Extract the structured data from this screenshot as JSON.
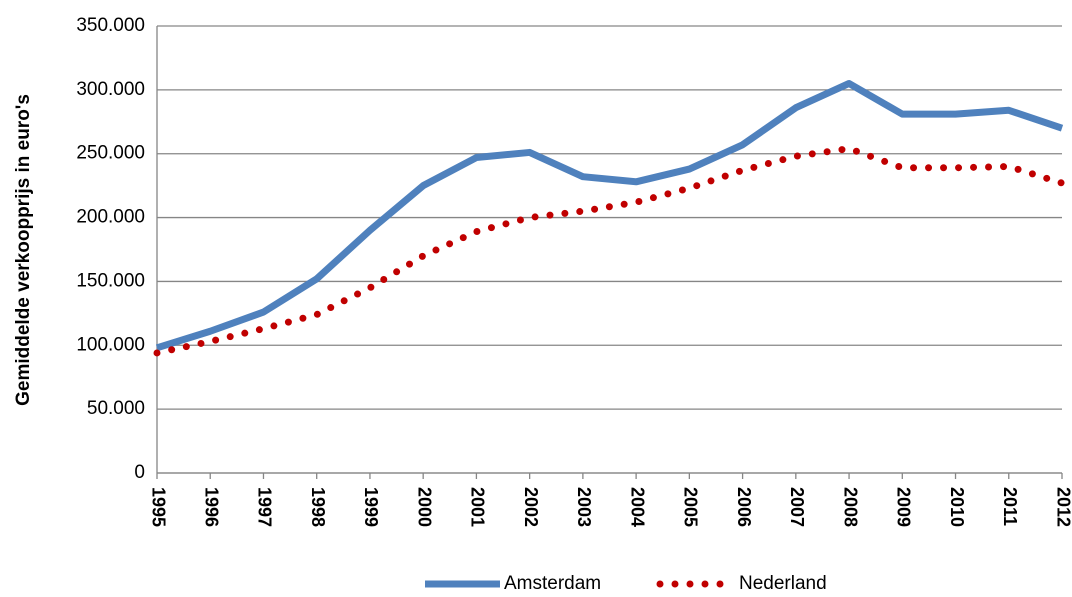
{
  "chart_data": {
    "type": "line",
    "y_label": "Gemiddelde verkoopprijs in euro's",
    "categories": [
      "1995",
      "1996",
      "1997",
      "1998",
      "1999",
      "2000",
      "2001",
      "2002",
      "2003",
      "2004",
      "2005",
      "2006",
      "2007",
      "2008",
      "2009",
      "2010",
      "2011",
      "2012"
    ],
    "series": [
      {
        "name": "Amsterdam",
        "color": "#4f81bd",
        "style": "solid",
        "values": [
          98000,
          111000,
          126000,
          152000,
          190000,
          225000,
          247000,
          251000,
          232000,
          228000,
          238000,
          257000,
          286000,
          305000,
          281000,
          281000,
          284000,
          270000
        ]
      },
      {
        "name": "Nederland",
        "color": "#c00000",
        "style": "dotted",
        "values": [
          94000,
          103000,
          113000,
          124000,
          145000,
          170000,
          189000,
          200000,
          205000,
          212000,
          223000,
          237000,
          248000,
          254000,
          239000,
          239000,
          240000,
          227000
        ]
      }
    ],
    "ylim": [
      0,
      350000
    ],
    "yticks": [
      0,
      {
        "value": 50000,
        "label": "50.000"
      },
      {
        "value": 100000,
        "label": "100.000"
      },
      {
        "value": 150000,
        "label": "150.000"
      },
      {
        "value": 200000,
        "label": "200.000"
      },
      {
        "value": 250000,
        "label": "250.000"
      },
      {
        "value": 300000,
        "label": "300.000"
      },
      {
        "value": 350000,
        "label": "350.000"
      }
    ],
    "grid": true,
    "legend": "bottom"
  }
}
